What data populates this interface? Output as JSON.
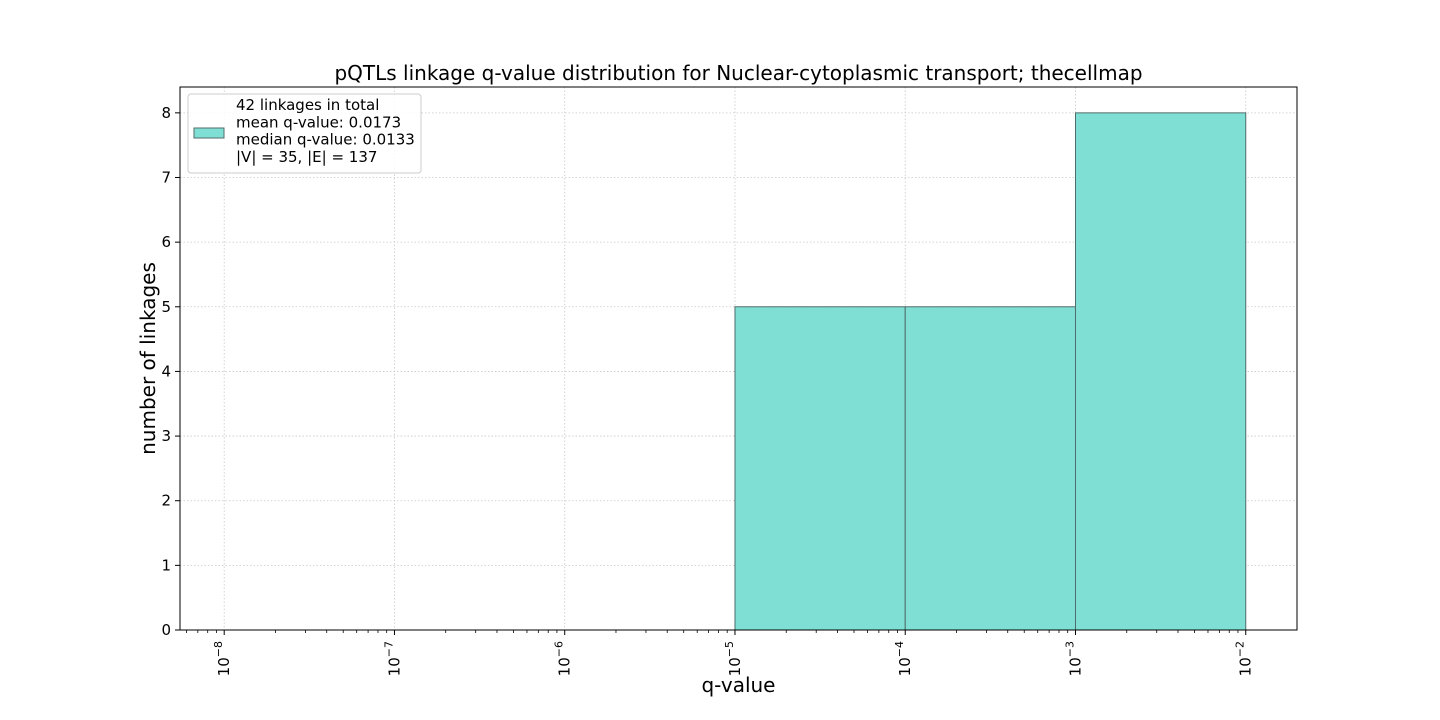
{
  "chart_data": {
    "type": "bar",
    "title": "pQTLs linkage q-value distribution for Nuclear-cytoplasmic transport; thecellmap",
    "xlabel": "q-value",
    "ylabel": "number of linkages",
    "x_scale": "log",
    "xlim": [
      5.5e-09,
      0.02
    ],
    "ylim": [
      0,
      8.4
    ],
    "grid": true,
    "legend_position": "top-left",
    "bar_color": "#80DFD4",
    "edge_color": "#4F6D6A",
    "x_ticks": [
      {
        "label_base": "10",
        "exponent": "−8",
        "value": 1e-08
      },
      {
        "label_base": "10",
        "exponent": "−7",
        "value": 1e-07
      },
      {
        "label_base": "10",
        "exponent": "−6",
        "value": 1e-06
      },
      {
        "label_base": "10",
        "exponent": "−5",
        "value": 1e-05
      },
      {
        "label_base": "10",
        "exponent": "−4",
        "value": 0.0001
      },
      {
        "label_base": "10",
        "exponent": "−3",
        "value": 0.001
      },
      {
        "label_base": "10",
        "exponent": "−2",
        "value": 0.01
      }
    ],
    "y_ticks": [
      0,
      1,
      2,
      3,
      4,
      5,
      6,
      7,
      8
    ],
    "bins": [
      {
        "x0": 1e-05,
        "x1": 0.0001,
        "count": 5
      },
      {
        "x0": 0.0001,
        "x1": 0.001,
        "count": 5
      },
      {
        "x0": 0.001,
        "x1": 0.01,
        "count": 8
      }
    ],
    "legend": {
      "lines": [
        "42 linkages in total",
        "mean q-value: 0.0173",
        "median q-value: 0.0133",
        "|V| = 35, |E| = 137"
      ]
    }
  }
}
